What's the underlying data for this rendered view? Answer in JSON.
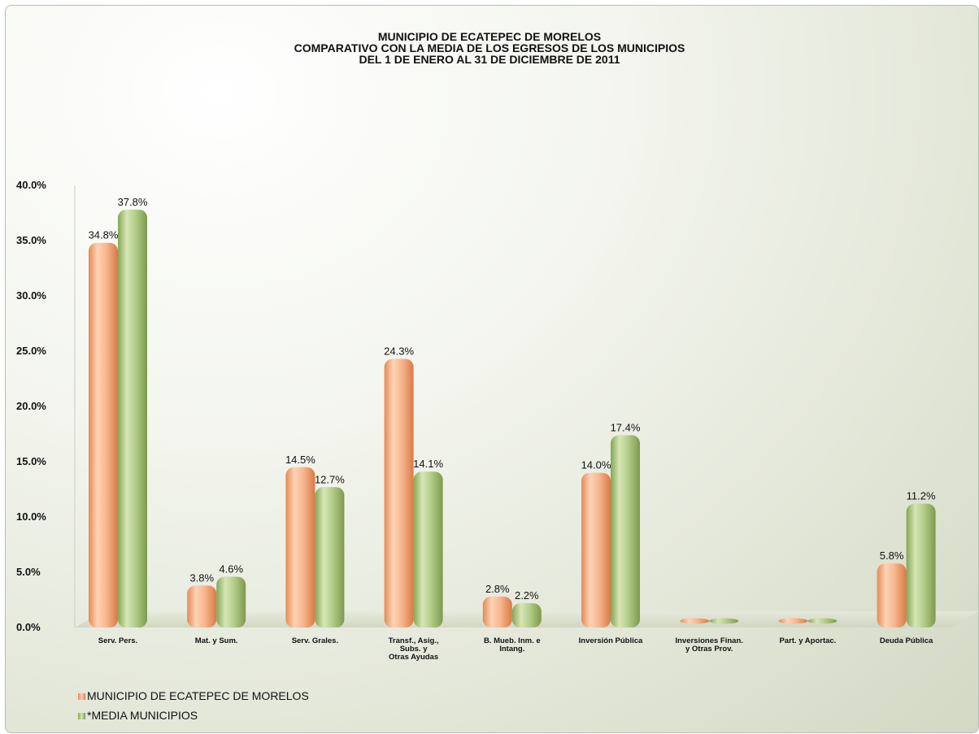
{
  "chart_data": {
    "type": "bar",
    "title": [
      "MUNICIPIO DE ECATEPEC DE MORELOS",
      "COMPARATIVO CON LA MEDIA DE LOS EGRESOS DE LOS MUNICIPIOS",
      "DEL 1 DE ENERO AL 31 DE DICIEMBRE DE 2011"
    ],
    "categories": [
      [
        "Serv. Pers."
      ],
      [
        "Mat. y Sum."
      ],
      [
        "Serv. Grales."
      ],
      [
        "Transf.,  Asig.,",
        "Subs. y",
        "Otras Ayudas"
      ],
      [
        "B. Mueb. Inm. e",
        "Intang."
      ],
      [
        "Inversión Pública"
      ],
      [
        "Inversiones Finan.",
        "y Otras Prov."
      ],
      [
        "Part. y Aportac."
      ],
      [
        "Deuda Pública"
      ]
    ],
    "series": [
      {
        "name": "MUNICIPIO  DE ECATEPEC  DE MORELOS",
        "color": "#f4a97f",
        "values": [
          34.8,
          3.8,
          14.5,
          24.3,
          2.8,
          14.0,
          0,
          0,
          5.8
        ],
        "labels": [
          "34.8%",
          "3.8%",
          "14.5%",
          "24.3%",
          "2.8%",
          "14.0%",
          "",
          "",
          "5.8%"
        ]
      },
      {
        "name": "*MEDIA MUNICIPIOS",
        "color": "#a6c07a",
        "values": [
          37.8,
          4.6,
          12.7,
          14.1,
          2.2,
          17.4,
          0,
          0,
          11.2
        ],
        "labels": [
          "37.8%",
          "4.6%",
          "12.7%",
          "14.1%",
          "2.2%",
          "17.4%",
          "",
          "",
          "11.2%"
        ]
      }
    ],
    "yticks": [
      "0.0%",
      "5.0%",
      "10.0%",
      "15.0%",
      "20.0%",
      "25.0%",
      "30.0%",
      "35.0%",
      "40.0%"
    ],
    "ylim": [
      0,
      40
    ],
    "legend_position": "bottom-left",
    "grid": false
  }
}
